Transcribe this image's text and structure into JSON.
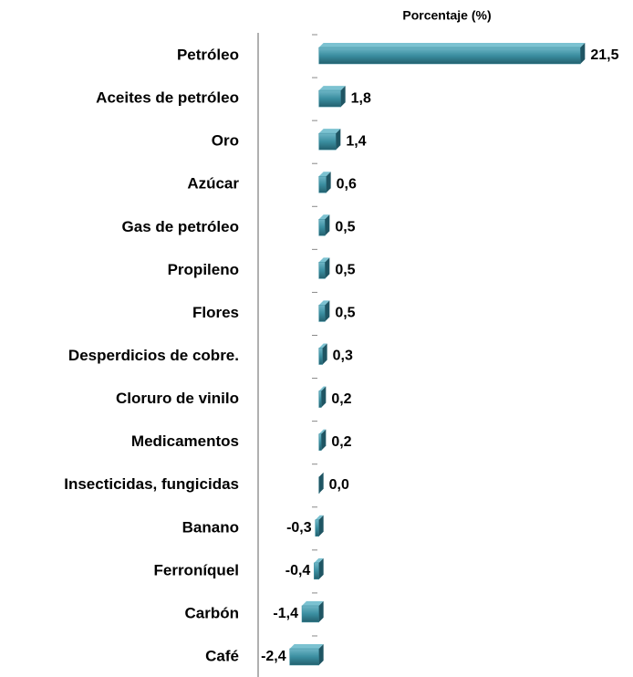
{
  "chart_data": {
    "type": "bar",
    "orientation": "horizontal",
    "title": "Porcentaje (%)",
    "categories": [
      "Petróleo",
      "Aceites de petróleo",
      "Oro",
      "Azúcar",
      "Gas de petróleo",
      "Propileno",
      "Flores",
      "Desperdicios de cobre.",
      "Cloruro de vinilo",
      "Medicamentos",
      "Insecticidas, fungicidas",
      "Banano",
      "Ferroníquel",
      "Carbón",
      "Café"
    ],
    "values": [
      21.5,
      1.8,
      1.4,
      0.6,
      0.5,
      0.5,
      0.5,
      0.3,
      0.2,
      0.2,
      0.0,
      -0.3,
      -0.4,
      -1.4,
      -2.4
    ],
    "value_labels": [
      "21,5",
      "1,8",
      "1,4",
      "0,6",
      "0,5",
      "0,5",
      "0,5",
      "0,3",
      "0,2",
      "0,2",
      "0,0",
      "-0,3",
      "-0,4",
      "-1,4",
      "-2,4"
    ],
    "color": "#3a8ea0",
    "xlim": [
      -5,
      25
    ]
  }
}
